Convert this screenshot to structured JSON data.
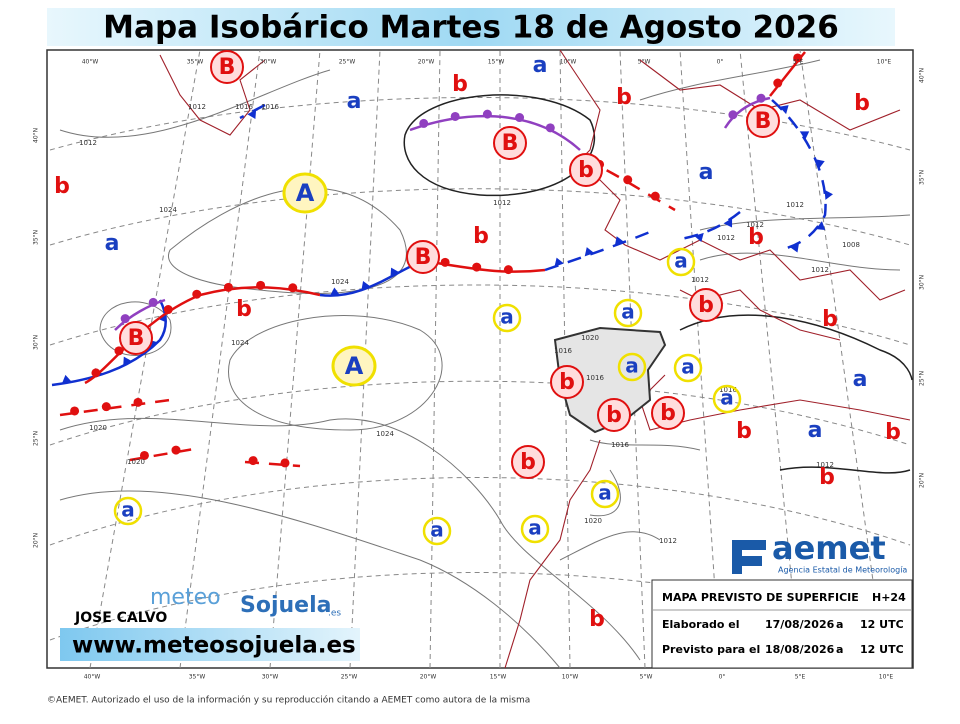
{
  "header": {
    "title": "Mapa Isobárico Martes 18 de Agosto 2026"
  },
  "lon_labels": [
    "40°W",
    "35°W",
    "30°W",
    "25°W",
    "20°W",
    "15°W",
    "10°W",
    "5°W",
    "0°",
    "5°E",
    "10°E"
  ],
  "lat_labels": [
    "40°N",
    "35°N",
    "30°N",
    "25°N",
    "20°N"
  ],
  "circled_centers": [
    "B",
    "B",
    "b",
    "B",
    "B",
    "B",
    "b",
    "b",
    "b",
    "b",
    "b"
  ],
  "high_centers": [
    "A",
    "A"
  ],
  "ringed_centers": [
    "a",
    "a",
    "a",
    "a",
    "a",
    "a",
    "a",
    "a",
    "a",
    "a"
  ],
  "plain_lows": [
    "b",
    "b",
    "b",
    "b",
    "b",
    "b",
    "b",
    "b",
    "b",
    "b",
    "b",
    "b"
  ],
  "plain_highs": [
    "a",
    "a",
    "a",
    "a",
    "a",
    "a"
  ],
  "isobar_labels": [
    "1012",
    "1016",
    "1012",
    "1016",
    "1012",
    "1024",
    "1024",
    "1024",
    "1020",
    "1020",
    "1024",
    "1016",
    "1020",
    "1016",
    "1012",
    "1012",
    "1008",
    "1012",
    "1012",
    "1012",
    "1016",
    "1012",
    "1012",
    "1020",
    "1016"
  ],
  "info_box": {
    "title": "MAPA PREVISTO DE SUPERFICIE",
    "step": "H+24",
    "row1": [
      "Elaborado el",
      "17/08/2026",
      "a",
      "12 UTC"
    ],
    "row2": [
      "Previsto para el",
      "18/08/2026",
      "a",
      "12 UTC"
    ]
  },
  "logo": {
    "name": "aemet",
    "subtitle": "Agencia Estatal de Meteorología"
  },
  "brand": {
    "part1": "meteo",
    "part2": "Sojuela",
    "part3": ".es",
    "author": "JOSE CALVO",
    "website": "www.meteosojuela.es"
  },
  "footer": "©AEMET. Autorizado el uso de la información y su reproducción citando a AEMET como autora de la misma"
}
